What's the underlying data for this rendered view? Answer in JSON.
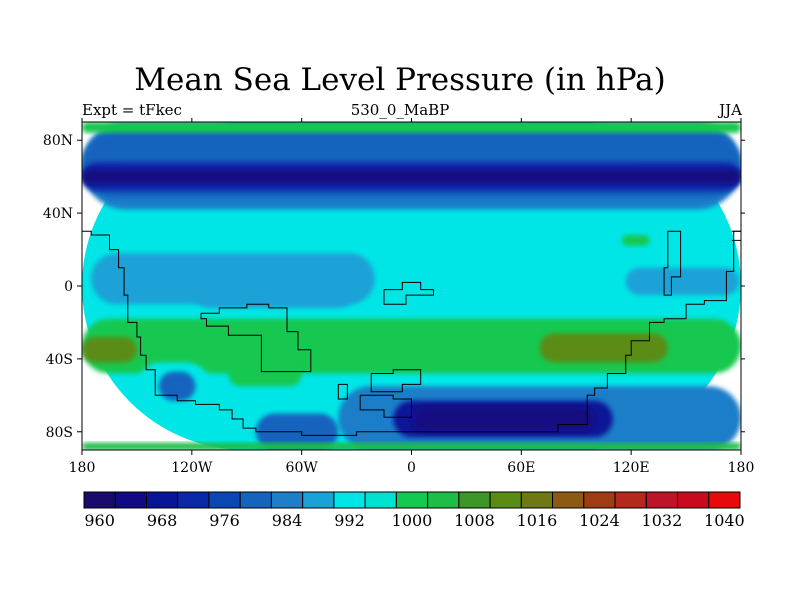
{
  "chart_data": {
    "type": "heatmap",
    "title": "Mean Sea Level Pressure (in hPa)",
    "left_string": "Expt = tFkec",
    "center_string": "530_0_MaBP",
    "right_string": "JJA",
    "xlim": [
      -180,
      180
    ],
    "ylim": [
      -90,
      90
    ],
    "x_ticks": [
      {
        "value": -180,
        "label": "180"
      },
      {
        "value": -120,
        "label": "120W"
      },
      {
        "value": -60,
        "label": "60W"
      },
      {
        "value": 0,
        "label": "0"
      },
      {
        "value": 60,
        "label": "60E"
      },
      {
        "value": 120,
        "label": "120E"
      },
      {
        "value": 180,
        "label": "180"
      }
    ],
    "y_ticks": [
      {
        "value": 80,
        "label": "80N"
      },
      {
        "value": 40,
        "label": "40N"
      },
      {
        "value": 0,
        "label": "0"
      },
      {
        "value": -40,
        "label": "40S"
      },
      {
        "value": -80,
        "label": "80S"
      }
    ],
    "colorbar": {
      "levels": [
        960,
        964,
        968,
        972,
        976,
        980,
        984,
        988,
        992,
        996,
        1000,
        1004,
        1008,
        1012,
        1016,
        1020,
        1024,
        1028,
        1032,
        1036,
        1040
      ],
      "labeled_levels": [
        960,
        968,
        976,
        984,
        992,
        1000,
        1008,
        1016,
        1024,
        1032,
        1040
      ],
      "colors": [
        "#1b0a6e",
        "#120a82",
        "#0a1496",
        "#0a28a8",
        "#0a46b4",
        "#1464be",
        "#1e7ec8",
        "#1aa2d6",
        "#00e6e6",
        "#00e1d2",
        "#14c850",
        "#1ebe46",
        "#3c9628",
        "#5a8c14",
        "#6e7814",
        "#8c5a14",
        "#a03c14",
        "#b4281e",
        "#be1428",
        "#c80a1e",
        "#e60a0a"
      ]
    },
    "fields": [
      {
        "lon": [
          -180,
          180
        ],
        "lat": [
          -90,
          90
        ],
        "value": 994
      },
      {
        "lon": [
          -180,
          180
        ],
        "lat": [
          42,
          90
        ],
        "value": 986
      },
      {
        "lon": [
          -180,
          180
        ],
        "lat": [
          48,
          85
        ],
        "value": 982
      },
      {
        "lon": [
          -180,
          180
        ],
        "lat": [
          52,
          68
        ],
        "value": 974
      },
      {
        "lon": [
          -180,
          180
        ],
        "lat": [
          56,
          64
        ],
        "value": 966
      },
      {
        "lon": [
          -180,
          180
        ],
        "lat": [
          84,
          90
        ],
        "value": 1002
      },
      {
        "lon": [
          -175,
          -20
        ],
        "lat": [
          -10,
          18
        ],
        "value": 990
      },
      {
        "lon": [
          -120,
          -30
        ],
        "lat": [
          -12,
          8
        ],
        "value": 988
      },
      {
        "lon": [
          117,
          179
        ],
        "lat": [
          -5,
          10
        ],
        "value": 990
      },
      {
        "lon": [
          -180,
          180
        ],
        "lat": [
          -48,
          -18
        ],
        "value": 1002
      },
      {
        "lon": [
          -180,
          -150
        ],
        "lat": [
          -42,
          -28
        ],
        "value": 1012
      },
      {
        "lon": [
          70,
          140
        ],
        "lat": [
          -42,
          -26
        ],
        "value": 1012
      },
      {
        "lon": [
          -100,
          -60
        ],
        "lat": [
          -55,
          -42
        ],
        "value": 1002
      },
      {
        "lon": [
          -150,
          -110
        ],
        "lat": [
          -68,
          -42
        ],
        "value": 994
      },
      {
        "lon": [
          -138,
          -118
        ],
        "lat": [
          -63,
          -47
        ],
        "value": 982
      },
      {
        "lon": [
          -130,
          -122
        ],
        "lat": [
          -58,
          -52
        ],
        "value": 980
      },
      {
        "lon": [
          -40,
          180
        ],
        "lat": [
          -90,
          -55
        ],
        "value": 986
      },
      {
        "lon": [
          -85,
          -40
        ],
        "lat": [
          -90,
          -70
        ],
        "value": 982
      },
      {
        "lon": [
          -10,
          110
        ],
        "lat": [
          -83,
          -63
        ],
        "value": 970
      },
      {
        "lon": [
          0,
          100
        ],
        "lat": [
          -80,
          -66
        ],
        "value": 966
      },
      {
        "lon": [
          115,
          130
        ],
        "lat": [
          22,
          28
        ],
        "value": 1002
      },
      {
        "lon": [
          -180,
          180
        ],
        "lat": [
          -90,
          -86
        ],
        "value": 1004
      }
    ]
  }
}
